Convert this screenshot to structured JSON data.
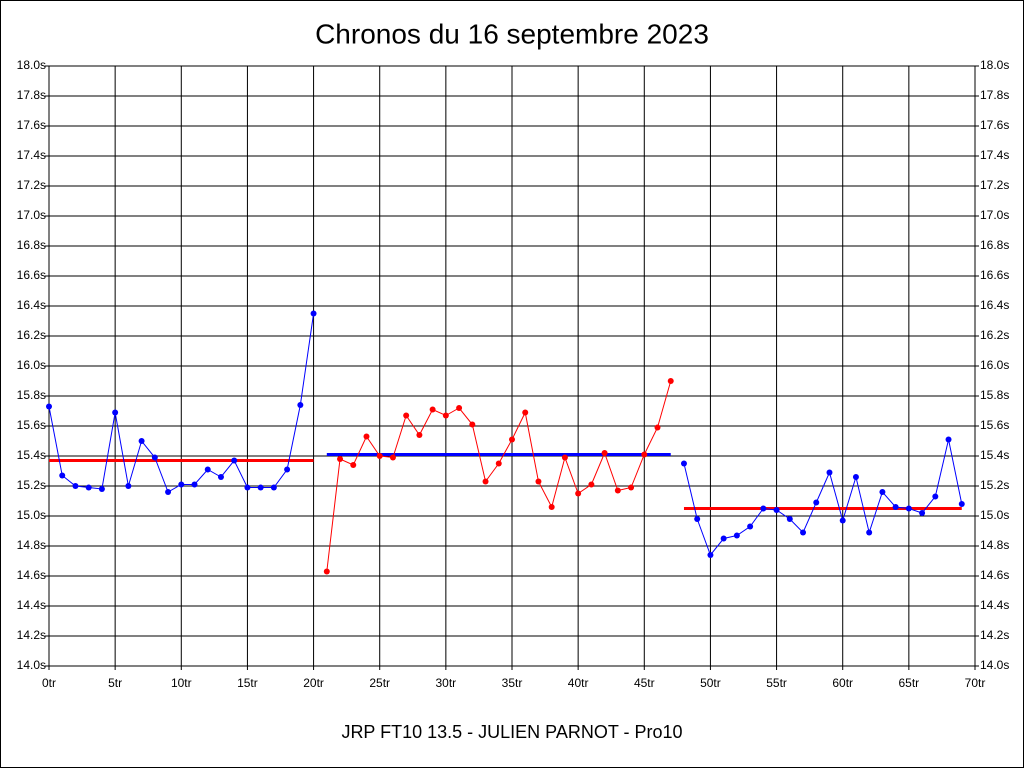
{
  "chart_data": {
    "type": "line",
    "title": "Chronos du 16 septembre 2023",
    "xlabel": "JRP FT10 13.5 - JULIEN PARNOT - Pro10",
    "grid": true,
    "xlim": [
      0,
      70
    ],
    "ylim": [
      14,
      18
    ],
    "xticks": [
      {
        "value": 0,
        "label": "0tr"
      },
      {
        "value": 5,
        "label": "5tr"
      },
      {
        "value": 10,
        "label": "10tr"
      },
      {
        "value": 15,
        "label": "15tr"
      },
      {
        "value": 20,
        "label": "20tr"
      },
      {
        "value": 25,
        "label": "25tr"
      },
      {
        "value": 30,
        "label": "30tr"
      },
      {
        "value": 35,
        "label": "35tr"
      },
      {
        "value": 40,
        "label": "40tr"
      },
      {
        "value": 45,
        "label": "45tr"
      },
      {
        "value": 50,
        "label": "50tr"
      },
      {
        "value": 55,
        "label": "55tr"
      },
      {
        "value": 60,
        "label": "60tr"
      },
      {
        "value": 65,
        "label": "65tr"
      },
      {
        "value": 70,
        "label": "70tr"
      }
    ],
    "yticks": [
      {
        "value": 14,
        "label": "14.0s"
      },
      {
        "value": 14.2,
        "label": "14.2s"
      },
      {
        "value": 14.4,
        "label": "14.4s"
      },
      {
        "value": 14.6,
        "label": "14.6s"
      },
      {
        "value": 14.8,
        "label": "14.8s"
      },
      {
        "value": 15,
        "label": "15.0s"
      },
      {
        "value": 15.2,
        "label": "15.2s"
      },
      {
        "value": 15.4,
        "label": "15.4s"
      },
      {
        "value": 15.6,
        "label": "15.6s"
      },
      {
        "value": 15.8,
        "label": "15.8s"
      },
      {
        "value": 16,
        "label": "16.0s"
      },
      {
        "value": 16.2,
        "label": "16.2s"
      },
      {
        "value": 16.4,
        "label": "16.4s"
      },
      {
        "value": 16.6,
        "label": "16.6s"
      },
      {
        "value": 16.8,
        "label": "16.8s"
      },
      {
        "value": 17,
        "label": "17.0s"
      },
      {
        "value": 17.2,
        "label": "17.2s"
      },
      {
        "value": 17.4,
        "label": "17.4s"
      },
      {
        "value": 17.6,
        "label": "17.6s"
      },
      {
        "value": 17.8,
        "label": "17.8s"
      },
      {
        "value": 18,
        "label": "18.0s"
      }
    ],
    "series": [
      {
        "color": "#0000ff",
        "x": [
          0,
          1,
          2,
          3,
          4,
          5,
          6,
          7,
          8,
          9,
          10,
          11,
          12,
          13,
          14,
          15,
          16,
          17,
          18,
          19,
          20
        ],
        "values": [
          15.73,
          15.27,
          15.2,
          15.19,
          15.18,
          15.69,
          15.2,
          15.5,
          15.39,
          15.16,
          15.21,
          15.21,
          15.31,
          15.26,
          15.37,
          15.19,
          15.19,
          15.19,
          15.31,
          15.74,
          16.35
        ]
      },
      {
        "color": "#ff0000",
        "x": [
          21,
          22,
          23,
          24,
          25,
          26,
          27,
          28,
          29,
          30,
          31,
          32,
          33,
          34,
          35,
          36,
          37,
          38,
          39,
          40,
          41,
          42,
          43,
          44,
          45,
          46,
          47
        ],
        "values": [
          14.63,
          15.38,
          15.34,
          15.53,
          15.4,
          15.39,
          15.67,
          15.54,
          15.71,
          15.67,
          15.72,
          15.61,
          15.23,
          15.35,
          15.51,
          15.69,
          15.23,
          15.06,
          15.39,
          15.15,
          15.21,
          15.42,
          15.17,
          15.19,
          15.41,
          15.59,
          15.9
        ]
      },
      {
        "color": "#0000ff",
        "x": [
          48,
          49,
          50,
          51,
          52,
          53,
          54,
          55,
          56,
          57,
          58,
          59,
          60,
          61,
          62,
          63,
          64,
          65,
          66,
          67,
          68,
          69
        ],
        "values": [
          15.35,
          14.98,
          14.74,
          14.85,
          14.87,
          14.93,
          15.05,
          15.04,
          14.98,
          14.89,
          15.09,
          15.29,
          14.97,
          15.26,
          14.89,
          15.16,
          15.06,
          15.05,
          15.02,
          15.13,
          15.51,
          15.08
        ]
      }
    ],
    "averages": [
      {
        "color": "#ff0000",
        "x": [
          0,
          20
        ],
        "value": 15.37
      },
      {
        "color": "#0000ff",
        "x": [
          21,
          47
        ],
        "value": 15.41
      },
      {
        "color": "#ff0000",
        "x": [
          48,
          69
        ],
        "value": 15.05
      }
    ]
  }
}
